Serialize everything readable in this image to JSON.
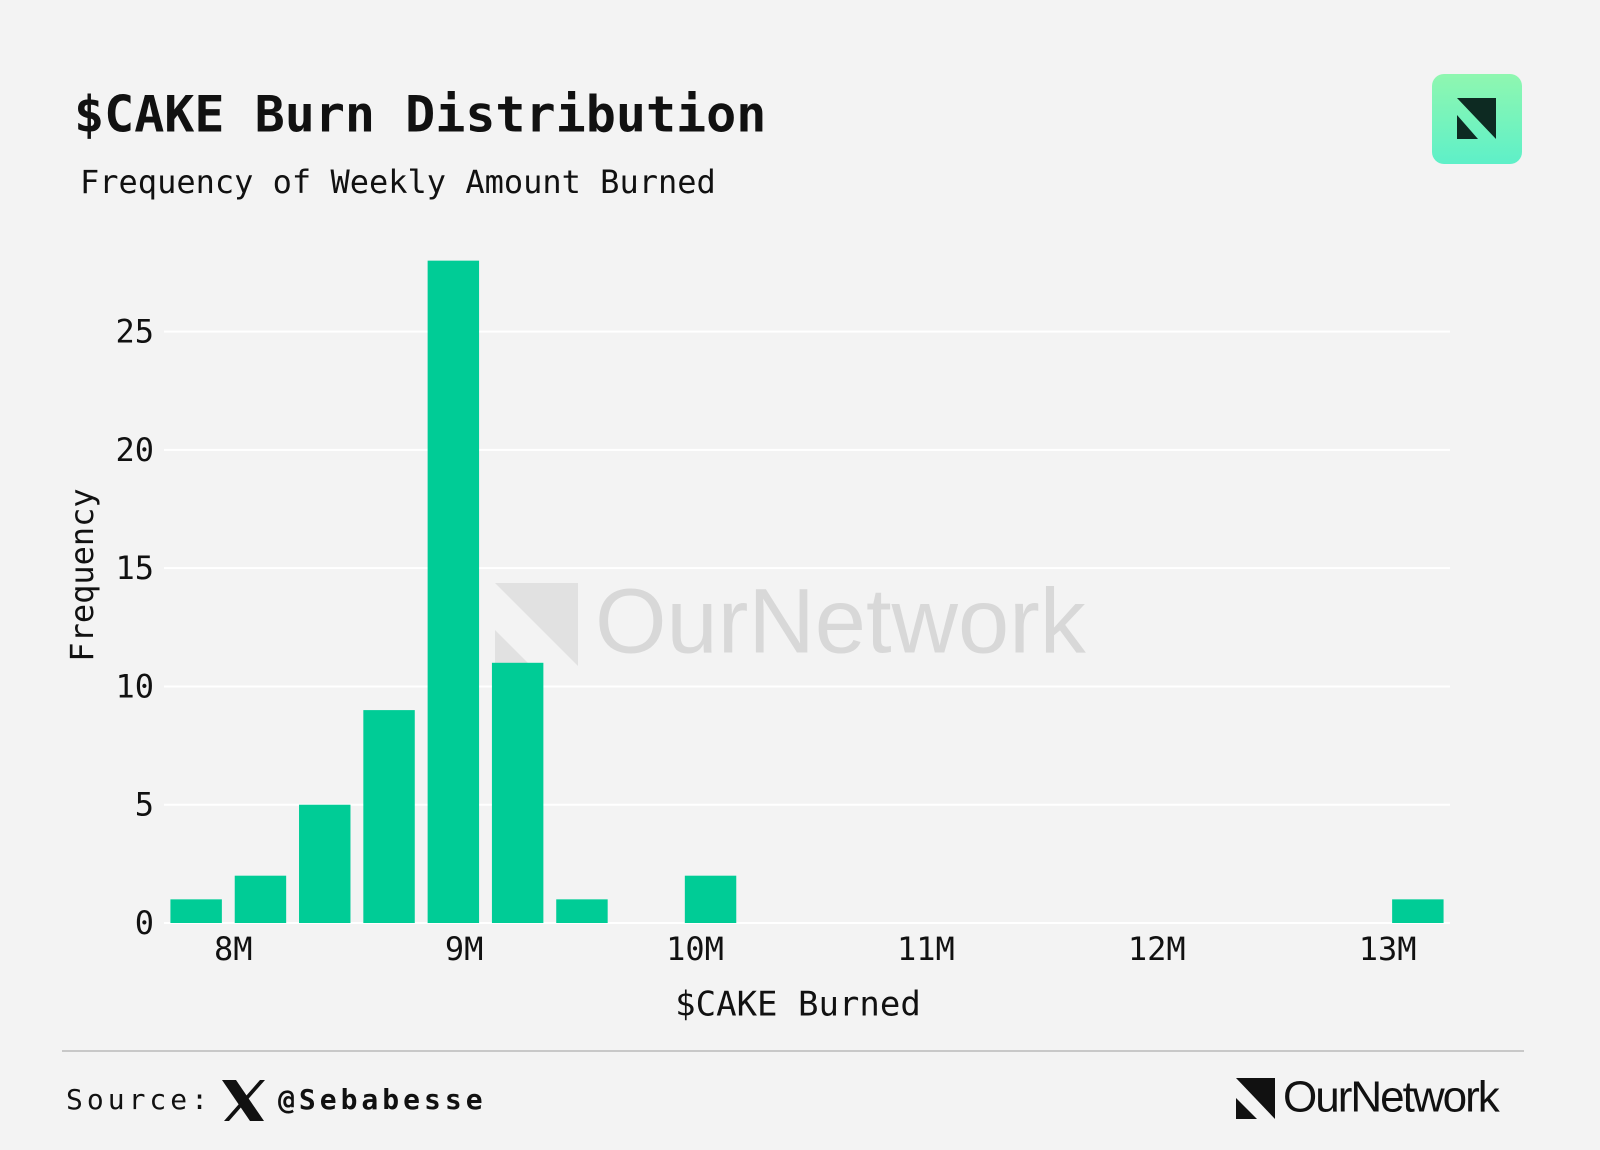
{
  "chart_data": {
    "type": "histogram",
    "title": "$CAKE Burn Distribution",
    "subtitle": "Frequency of Weekly Amount Burned",
    "x_label": "$CAKE Burned",
    "y_label": "Frequency",
    "bins": [
      7700000,
      7978500,
      8257000,
      8535500,
      8814000,
      9092500,
      9371000,
      9649500,
      9928000,
      10206500,
      10485000,
      10763500,
      11042000,
      11320500,
      11599000,
      11877500,
      12156000,
      12434500,
      12713000,
      12991500,
      13270000
    ],
    "values": [
      1,
      2,
      5,
      9,
      28,
      11,
      1,
      0,
      2,
      0,
      0,
      0,
      0,
      0,
      0,
      0,
      0,
      0,
      0,
      1
    ],
    "color": "#00cc96",
    "xlim": [
      7700000,
      13270000
    ],
    "xticks": [
      {
        "value": 8000000,
        "label": "8M"
      },
      {
        "value": 9000000,
        "label": "9M"
      },
      {
        "value": 10000000,
        "label": "10M"
      },
      {
        "value": 11000000,
        "label": "11M"
      },
      {
        "value": 12000000,
        "label": "12M"
      },
      {
        "value": 13000000,
        "label": "13M"
      }
    ],
    "ylim": [
      0,
      29
    ],
    "yticks": [
      0,
      5,
      10,
      15,
      20,
      25
    ],
    "grid": true
  },
  "watermark": "OurNetwork",
  "footer": {
    "source_label": "Source:",
    "handle": "@Sebabesse",
    "brand": "OurNetwork"
  }
}
